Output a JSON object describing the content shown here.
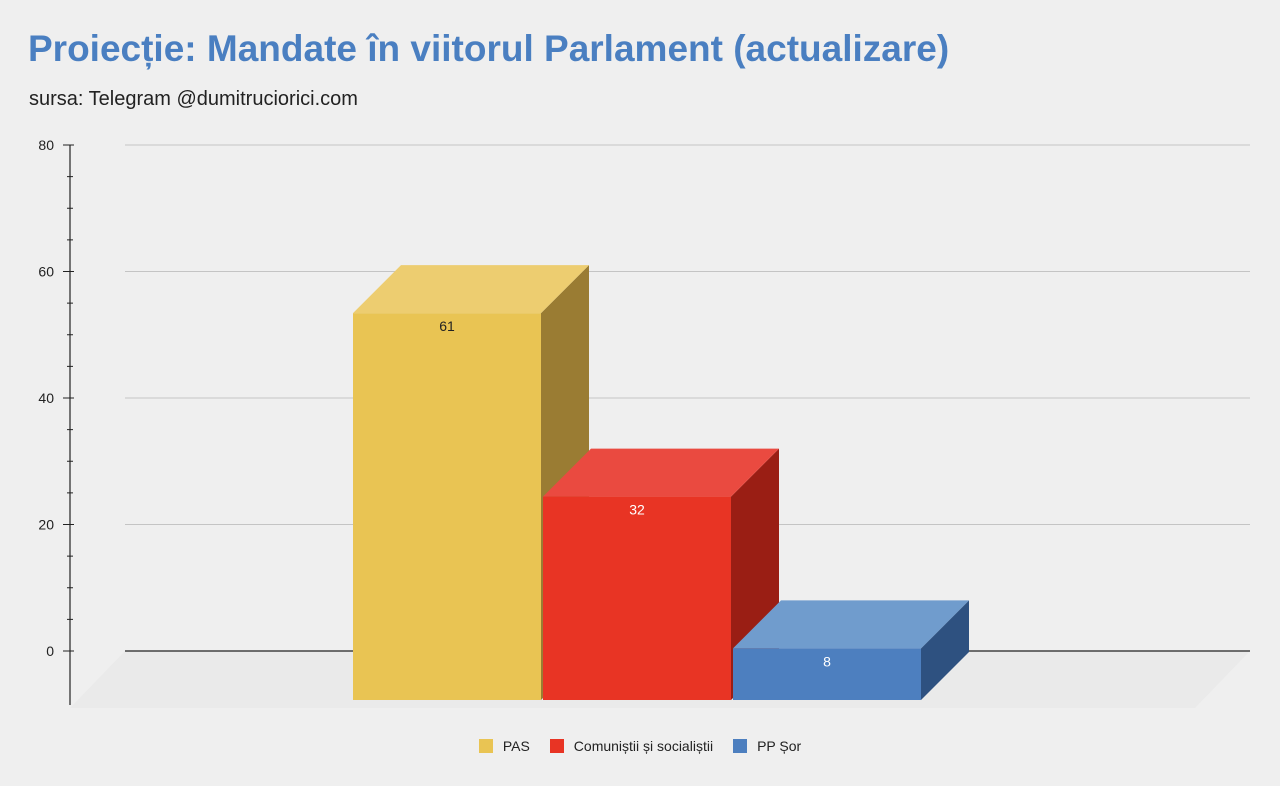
{
  "chart_data": {
    "type": "bar",
    "title": "Proiecție: Mandate în viitorul Parlament (actualizare)",
    "subtitle": "sursa: Telegram @dumitruciorici.com",
    "categories": [
      "PAS",
      "Comuniștii și socialiștii",
      "PP Șor"
    ],
    "values": [
      61,
      32,
      8
    ],
    "data_labels": [
      "61",
      "32",
      "8"
    ],
    "ylim": [
      0,
      80
    ],
    "yticks": [
      "0",
      "20",
      "40",
      "60",
      "80"
    ],
    "grid": true,
    "legend_position": "bottom",
    "style": "3d",
    "series": [
      {
        "name": "PAS",
        "value": 61,
        "color": "#e9c453",
        "top_color": "#edcd70",
        "side_color": "#9a7c33",
        "label_color": "#222222"
      },
      {
        "name": "Comuniștii și socialiștii",
        "value": 32,
        "color": "#e83424",
        "top_color": "#ea4a40",
        "side_color": "#9a1e14",
        "label_color": "#ffffff"
      },
      {
        "name": "PP Șor",
        "value": 8,
        "color": "#4d7fbf",
        "top_color": "#709ccd",
        "side_color": "#2e5180",
        "label_color": "#ffffff"
      }
    ]
  }
}
